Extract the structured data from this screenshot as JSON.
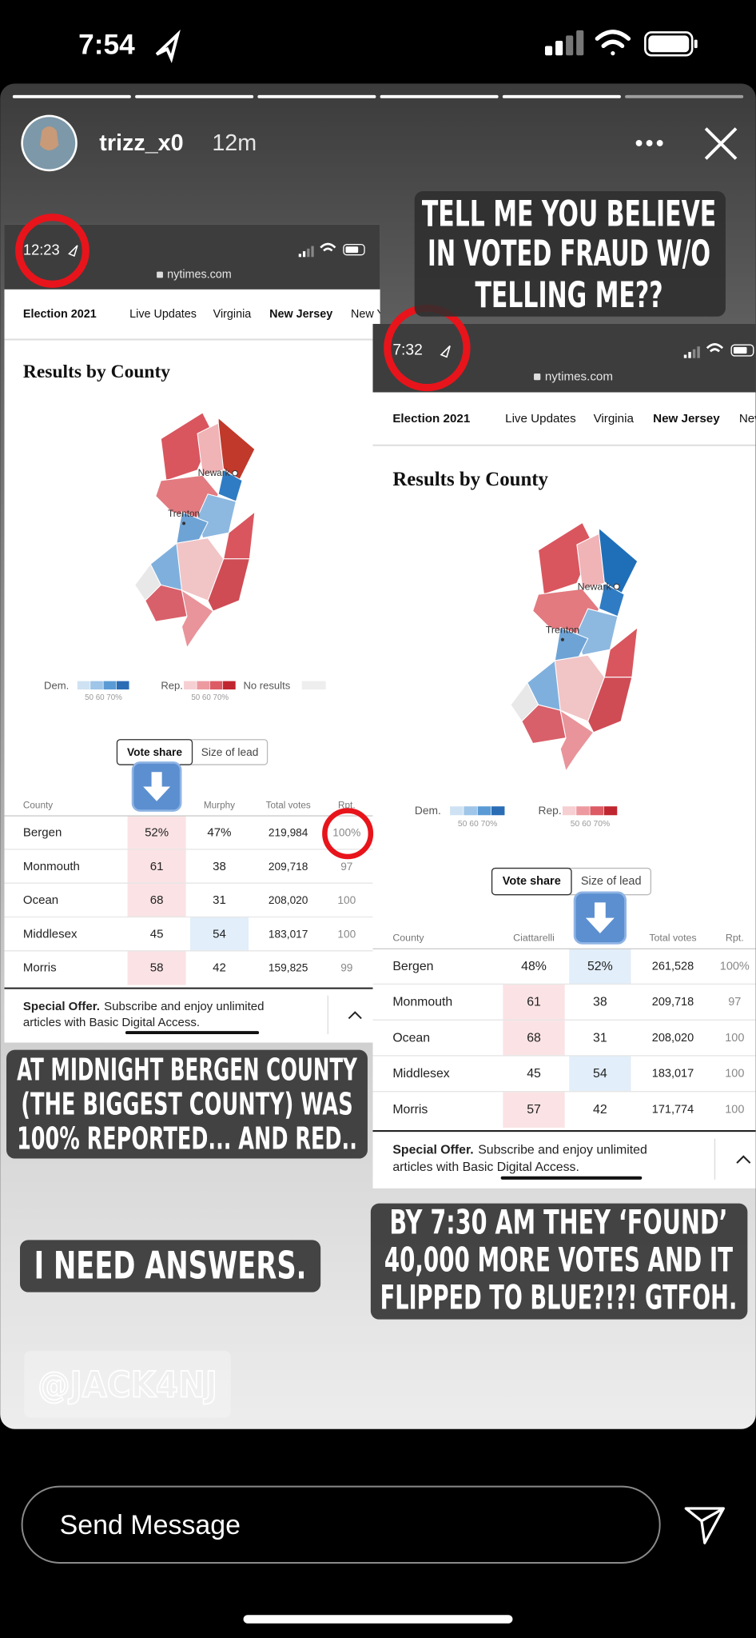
{
  "status_bar": {
    "time": "7:54"
  },
  "story": {
    "username": "trizz_x0",
    "age": "12m"
  },
  "captions": [
    {
      "lines": [
        "TELL ME YOU BELIEVE",
        "IN VOTED FRAUD W/O",
        "TELLING ME??"
      ]
    },
    {
      "lines": [
        "AT MIDNIGHT BERGEN COUNTY",
        "(THE BIGGEST COUNTY) WAS",
        "100% REPORTED... AND RED.."
      ]
    },
    {
      "lines": [
        "I NEED ANSWERS."
      ]
    },
    {
      "lines": [
        "BY 7:30 AM THEY ‘FOUND’",
        "40,000 MORE VOTES AND IT",
        "FLIPPED TO BLUE?!?! GTFOH."
      ]
    }
  ],
  "watermark": "@JACK4NJ",
  "screenshots": [
    {
      "time": "12:23",
      "url": "nytimes.com",
      "nav": [
        "Election 2021",
        "Live Updates",
        "Virginia",
        "New Jersey",
        "New Y"
      ],
      "heading": "Results by County",
      "map_labels": [
        "Newark",
        "Trenton"
      ],
      "legend": {
        "dem": "Dem.",
        "rep": "Rep.",
        "scale": "50 60 70%",
        "no_results": "No results"
      },
      "toggle": [
        "Vote share",
        "Size of lead"
      ],
      "table": {
        "header": [
          "County",
          null,
          "Murphy",
          "Total votes",
          "Rpt."
        ],
        "rows": [
          [
            "Bergen",
            "52%",
            "47%",
            "219,984",
            "100%"
          ],
          [
            "Monmouth",
            "61",
            "38",
            "209,718",
            "97"
          ],
          [
            "Ocean",
            "68",
            "31",
            "208,020",
            "100"
          ],
          [
            "Middlesex",
            "45",
            "54",
            "183,017",
            "100"
          ],
          [
            "Morris",
            "58",
            "42",
            "159,825",
            "99"
          ]
        ]
      },
      "offer": {
        "lead": "Special Offer.",
        "line1": "Subscribe and enjoy unlimited",
        "line2": "articles with Basic Digital Access."
      }
    },
    {
      "time": "7:32",
      "url": "nytimes.com",
      "nav": [
        "Election 2021",
        "Live Updates",
        "Virginia",
        "New Jersey",
        "New"
      ],
      "heading": "Results by County",
      "map_labels": [
        "Newark",
        "Trenton"
      ],
      "legend": {
        "dem": "Dem.",
        "rep": "Rep.",
        "scale": "50 60 70%"
      },
      "toggle": [
        "Vote share",
        "Size of lead"
      ],
      "table": {
        "header": [
          "County",
          "Ciattarelli",
          null,
          "Total votes",
          "Rpt."
        ],
        "rows": [
          [
            "Bergen",
            "48%",
            "52%",
            "261,528",
            "100%"
          ],
          [
            "Monmouth",
            "61",
            "38",
            "209,718",
            "97"
          ],
          [
            "Ocean",
            "68",
            "31",
            "208,020",
            "100"
          ],
          [
            "Middlesex",
            "45",
            "54",
            "183,017",
            "100"
          ],
          [
            "Morris",
            "57",
            "42",
            "171,774",
            "100"
          ]
        ]
      },
      "offer": {
        "lead": "Special Offer.",
        "line1": "Subscribe and enjoy unlimited",
        "line2": "articles with Basic Digital Access."
      }
    }
  ],
  "message_input": {
    "placeholder": "Send Message"
  }
}
